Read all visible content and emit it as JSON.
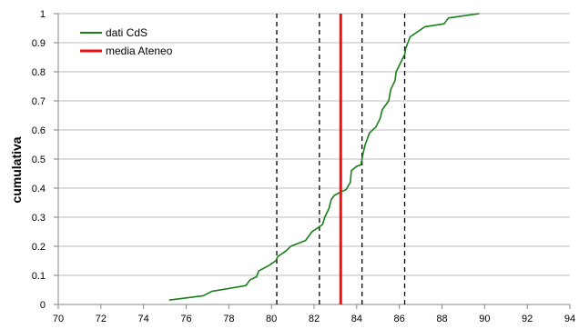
{
  "chart_data": {
    "type": "line",
    "title": "",
    "xlabel": "",
    "ylabel": "cumulativa",
    "xlim": [
      70,
      94
    ],
    "ylim": [
      0,
      1
    ],
    "x_ticks": [
      70,
      72,
      74,
      76,
      78,
      80,
      82,
      84,
      86,
      88,
      90,
      92,
      94
    ],
    "y_ticks": [
      0,
      0.1,
      0.2,
      0.3,
      0.4,
      0.5,
      0.6,
      0.7,
      0.8,
      0.9,
      1
    ],
    "grid": "horizontal",
    "legend_position": "top-left",
    "series": [
      {
        "name": "dati CdS",
        "color": "#1a7f1a",
        "points": [
          [
            75.2,
            0.015
          ],
          [
            76.8,
            0.03
          ],
          [
            77.2,
            0.045
          ],
          [
            78.8,
            0.065
          ],
          [
            79.0,
            0.085
          ],
          [
            79.3,
            0.095
          ],
          [
            79.4,
            0.115
          ],
          [
            79.9,
            0.135
          ],
          [
            80.2,
            0.15
          ],
          [
            80.3,
            0.165
          ],
          [
            80.7,
            0.185
          ],
          [
            80.9,
            0.2
          ],
          [
            81.6,
            0.22
          ],
          [
            81.8,
            0.24
          ],
          [
            81.9,
            0.25
          ],
          [
            82.1,
            0.26
          ],
          [
            82.4,
            0.275
          ],
          [
            82.5,
            0.3
          ],
          [
            82.7,
            0.33
          ],
          [
            82.8,
            0.36
          ],
          [
            82.95,
            0.375
          ],
          [
            83.2,
            0.385
          ],
          [
            83.5,
            0.395
          ],
          [
            83.7,
            0.42
          ],
          [
            83.75,
            0.46
          ],
          [
            84.0,
            0.475
          ],
          [
            84.2,
            0.48
          ],
          [
            84.3,
            0.52
          ],
          [
            84.4,
            0.55
          ],
          [
            84.6,
            0.59
          ],
          [
            84.9,
            0.61
          ],
          [
            85.1,
            0.64
          ],
          [
            85.2,
            0.67
          ],
          [
            85.5,
            0.7
          ],
          [
            85.6,
            0.74
          ],
          [
            85.8,
            0.77
          ],
          [
            85.85,
            0.8
          ],
          [
            86.05,
            0.83
          ],
          [
            86.25,
            0.86
          ],
          [
            86.3,
            0.88
          ],
          [
            86.5,
            0.92
          ],
          [
            86.8,
            0.935
          ],
          [
            87.2,
            0.955
          ],
          [
            88.1,
            0.965
          ],
          [
            88.3,
            0.985
          ],
          [
            89.75,
            1.0
          ]
        ]
      }
    ],
    "mean_line": {
      "name": "media Ateneo",
      "x": 83.25,
      "color": "#ee1111"
    },
    "reference_lines": [
      {
        "x": 80.25,
        "style": "dashed",
        "color": "#000000"
      },
      {
        "x": 82.25,
        "style": "dashed",
        "color": "#000000"
      },
      {
        "x": 84.25,
        "style": "dashed",
        "color": "#000000"
      },
      {
        "x": 86.25,
        "style": "dashed",
        "color": "#000000"
      }
    ]
  }
}
